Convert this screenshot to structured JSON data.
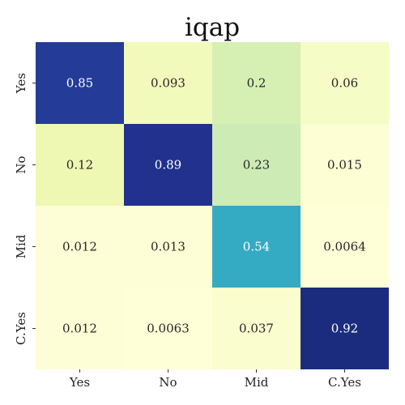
{
  "chart_data": {
    "type": "heatmap",
    "title": "iqap",
    "x_categories": [
      "Yes",
      "No",
      "Mid",
      "C.Yes"
    ],
    "y_categories": [
      "Yes",
      "No",
      "Mid",
      "C.Yes"
    ],
    "values": [
      [
        0.85,
        0.093,
        0.2,
        0.06
      ],
      [
        0.12,
        0.89,
        0.23,
        0.015
      ],
      [
        0.012,
        0.013,
        0.54,
        0.0064
      ],
      [
        0.012,
        0.0063,
        0.037,
        0.92
      ]
    ],
    "cell_labels": [
      [
        "0.85",
        "0.093",
        "0.2",
        "0.06"
      ],
      [
        "0.12",
        "0.89",
        "0.23",
        "0.015"
      ],
      [
        "0.012",
        "0.013",
        "0.54",
        "0.0064"
      ],
      [
        "0.012",
        "0.0063",
        "0.037",
        "0.92"
      ]
    ],
    "colormap": "YlGnBu",
    "value_range": [
      0,
      1
    ],
    "colorbar": false,
    "grid": false
  }
}
